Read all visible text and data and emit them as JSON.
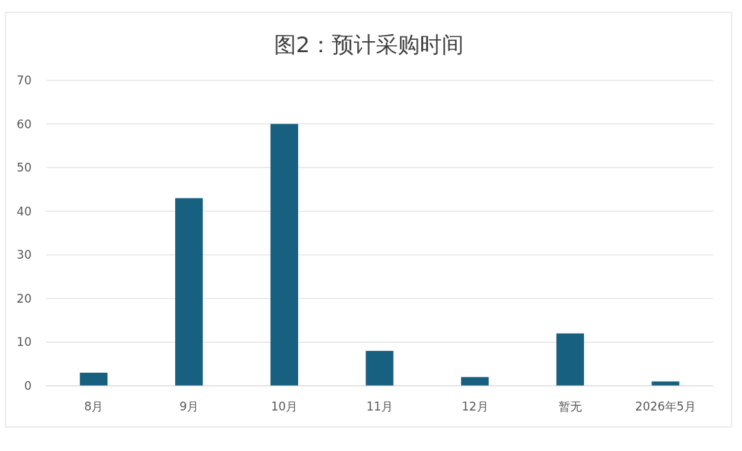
{
  "chart_data": {
    "type": "bar",
    "title": "图2：预计采购时间",
    "categories": [
      "8月",
      "9月",
      "10月",
      "11月",
      "12月",
      "暂无",
      "2026年5月"
    ],
    "values": [
      3,
      43,
      60,
      8,
      2,
      12,
      1
    ],
    "color": "#17607f",
    "ylim": [
      0,
      70
    ],
    "yticks": [
      0,
      10,
      20,
      30,
      40,
      50,
      60,
      70
    ],
    "grid": "y"
  }
}
